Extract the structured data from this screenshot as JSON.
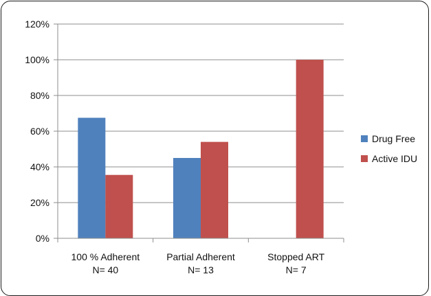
{
  "chart_data": {
    "type": "bar",
    "categories": [
      [
        "100 % Adherent",
        "N= 40"
      ],
      [
        "Partial Adherent",
        "N= 13"
      ],
      [
        "Stopped ART",
        "N= 7"
      ]
    ],
    "series": [
      {
        "name": "Drug Free",
        "color": "#4f81bd",
        "values": [
          67.5,
          45,
          0
        ]
      },
      {
        "name": "Active IDU",
        "color": "#c0504d",
        "values": [
          35.5,
          54,
          100
        ]
      }
    ],
    "y_ticks": [
      "0%",
      "20%",
      "40%",
      "60%",
      "80%",
      "100%",
      "120%"
    ],
    "ylim": [
      0,
      120
    ],
    "grid": true,
    "legend_position": "right",
    "title": "",
    "xlabel": "",
    "ylabel": ""
  }
}
